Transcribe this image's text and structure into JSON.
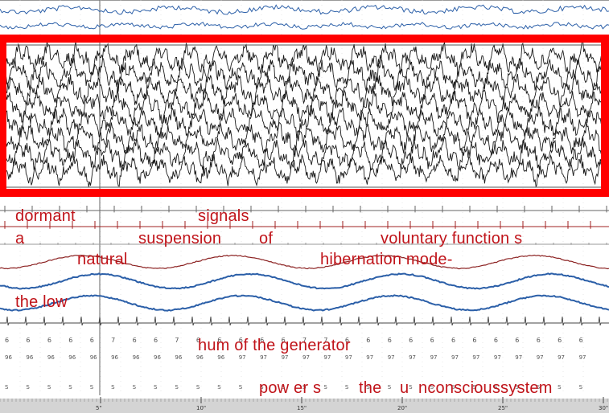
{
  "overlay_text": {
    "line1_a": "dormant",
    "line1_b": "signals",
    "line2_a": "a",
    "line2_b": "suspension",
    "line2_c": "of",
    "line2_d": "voluntary function s",
    "line3_a": "natural",
    "line3_b": "hibernation mode-",
    "line4_a": "the low",
    "line5_a": "hum of the generator",
    "line6_a": "pow er s",
    "line6_b": "the",
    "line6_c": "u",
    "line6_d": "nconscioussystem"
  },
  "time_axis": {
    "ticks": [
      "5\"",
      "10\"",
      "15\"",
      "20\"",
      "25\"",
      "30\""
    ]
  },
  "digit_rows": {
    "row_a": [
      "6",
      "6",
      "6",
      "6",
      "6",
      "7",
      "6",
      "6",
      "7",
      "6",
      "6",
      "6",
      "6",
      "6",
      "7",
      "7",
      "6",
      "6",
      "6",
      "6",
      "6",
      "6",
      "6",
      "6",
      "6",
      "6",
      "6",
      "6"
    ],
    "row_b": [
      "96",
      "96",
      "96",
      "96",
      "96",
      "96",
      "96",
      "96",
      "96",
      "96",
      "96",
      "97",
      "97",
      "97",
      "97",
      "97",
      "97",
      "97",
      "97",
      "97",
      "97",
      "97",
      "97",
      "97",
      "97",
      "97",
      "97",
      "97"
    ],
    "row_c": [
      "S",
      "S",
      "S",
      "S",
      "S",
      "S",
      "S",
      "S",
      "S",
      "S",
      "S",
      "S",
      "S",
      "S",
      "S",
      "S",
      "S",
      "S",
      "S",
      "S",
      "S",
      "S",
      "S",
      "S",
      "S",
      "S",
      "S",
      "S"
    ]
  },
  "colors": {
    "highlight_box": "#ff0000",
    "overlay_text": "#c0141a",
    "eeg_trace": "#1a1a1a",
    "blue_trace": "#2b5fa8",
    "darkred_trace": "#8b2020"
  }
}
